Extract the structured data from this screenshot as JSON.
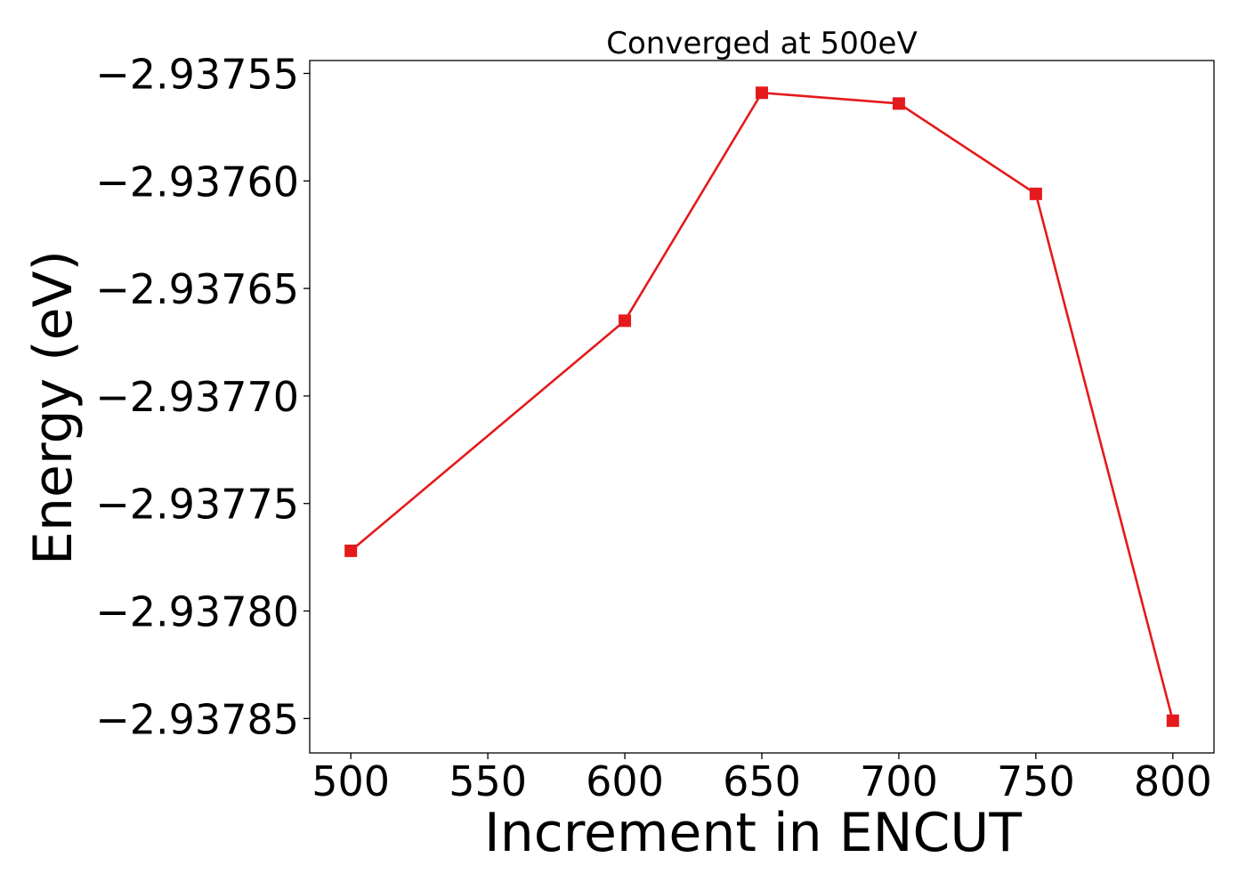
{
  "chart_data": {
    "type": "line",
    "title": "Converged at 500eV",
    "xlabel": "Increment in ENCUT",
    "ylabel": "Energy (eV)",
    "x": [
      500,
      600,
      650,
      700,
      750,
      800
    ],
    "series": [
      {
        "values": [
          -2.937772,
          -2.937665,
          -2.937559,
          -2.937564,
          -2.937606,
          -2.937851
        ],
        "color": "#e41a1c",
        "marker": "square"
      }
    ],
    "xticks": [
      500,
      550,
      600,
      650,
      700,
      750,
      800
    ],
    "xtick_labels": [
      "500",
      "550",
      "600",
      "650",
      "700",
      "750",
      "800"
    ],
    "yticks": [
      -2.93755,
      -2.9376,
      -2.93765,
      -2.9377,
      -2.93775,
      -2.9378,
      -2.93785
    ],
    "ytick_labels": [
      "−2.93755",
      "−2.93760",
      "−2.93765",
      "−2.93770",
      "−2.93775",
      "−2.93780",
      "−2.93785"
    ],
    "xlim": [
      485,
      815
    ],
    "ylim": [
      -2.937866,
      -2.937544
    ],
    "grid": false,
    "legend": false
  }
}
